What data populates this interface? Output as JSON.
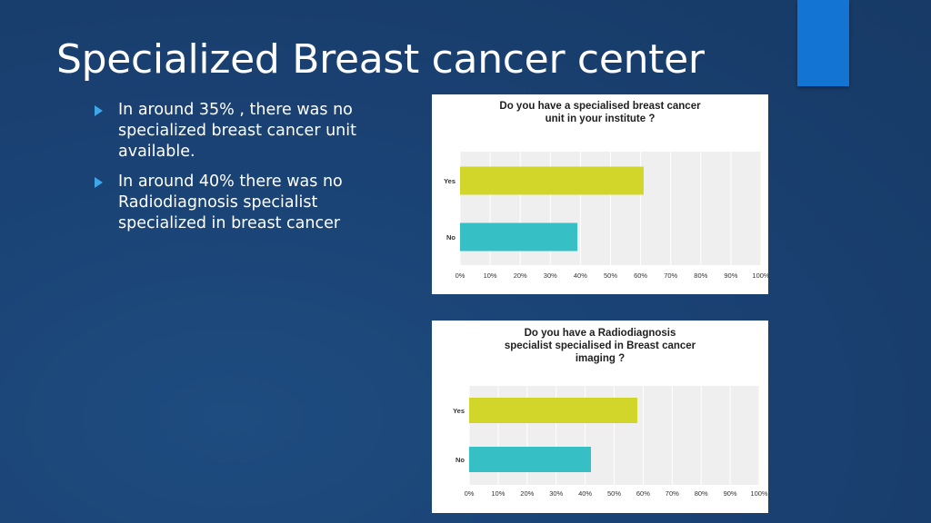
{
  "slide": {
    "title": "Specialized Breast cancer center",
    "bullets": [
      "In around 35% , there was no specialized breast cancer unit available.",
      "In around 40% there was no Radiodiagnosis specialist specialized in breast cancer"
    ]
  },
  "colors": {
    "yes_bar": "#d2d62b",
    "no_bar": "#36c0c6",
    "plot_bg": "#efefef",
    "accent": "#1474d4"
  },
  "chart_data": [
    {
      "type": "bar",
      "orientation": "horizontal",
      "title_lines": [
        "Do you have a specialised breast cancer",
        "unit in your institute ?"
      ],
      "categories": [
        "Yes",
        "No"
      ],
      "values": [
        61,
        39
      ],
      "xlim": [
        0,
        100
      ],
      "xticks": [
        "0%",
        "10%",
        "20%",
        "30%",
        "40%",
        "50%",
        "60%",
        "70%",
        "80%",
        "90%",
        "100%"
      ],
      "grid": true
    },
    {
      "type": "bar",
      "orientation": "horizontal",
      "title_lines": [
        "Do you have a Radiodiagnosis",
        "specialist specialised in Breast cancer",
        "imaging ?"
      ],
      "categories": [
        "Yes",
        "No"
      ],
      "values": [
        58,
        42
      ],
      "xlim": [
        0,
        100
      ],
      "xticks": [
        "0%",
        "10%",
        "20%",
        "30%",
        "40%",
        "50%",
        "60%",
        "70%",
        "80%",
        "90%",
        "100%"
      ],
      "grid": true
    }
  ]
}
